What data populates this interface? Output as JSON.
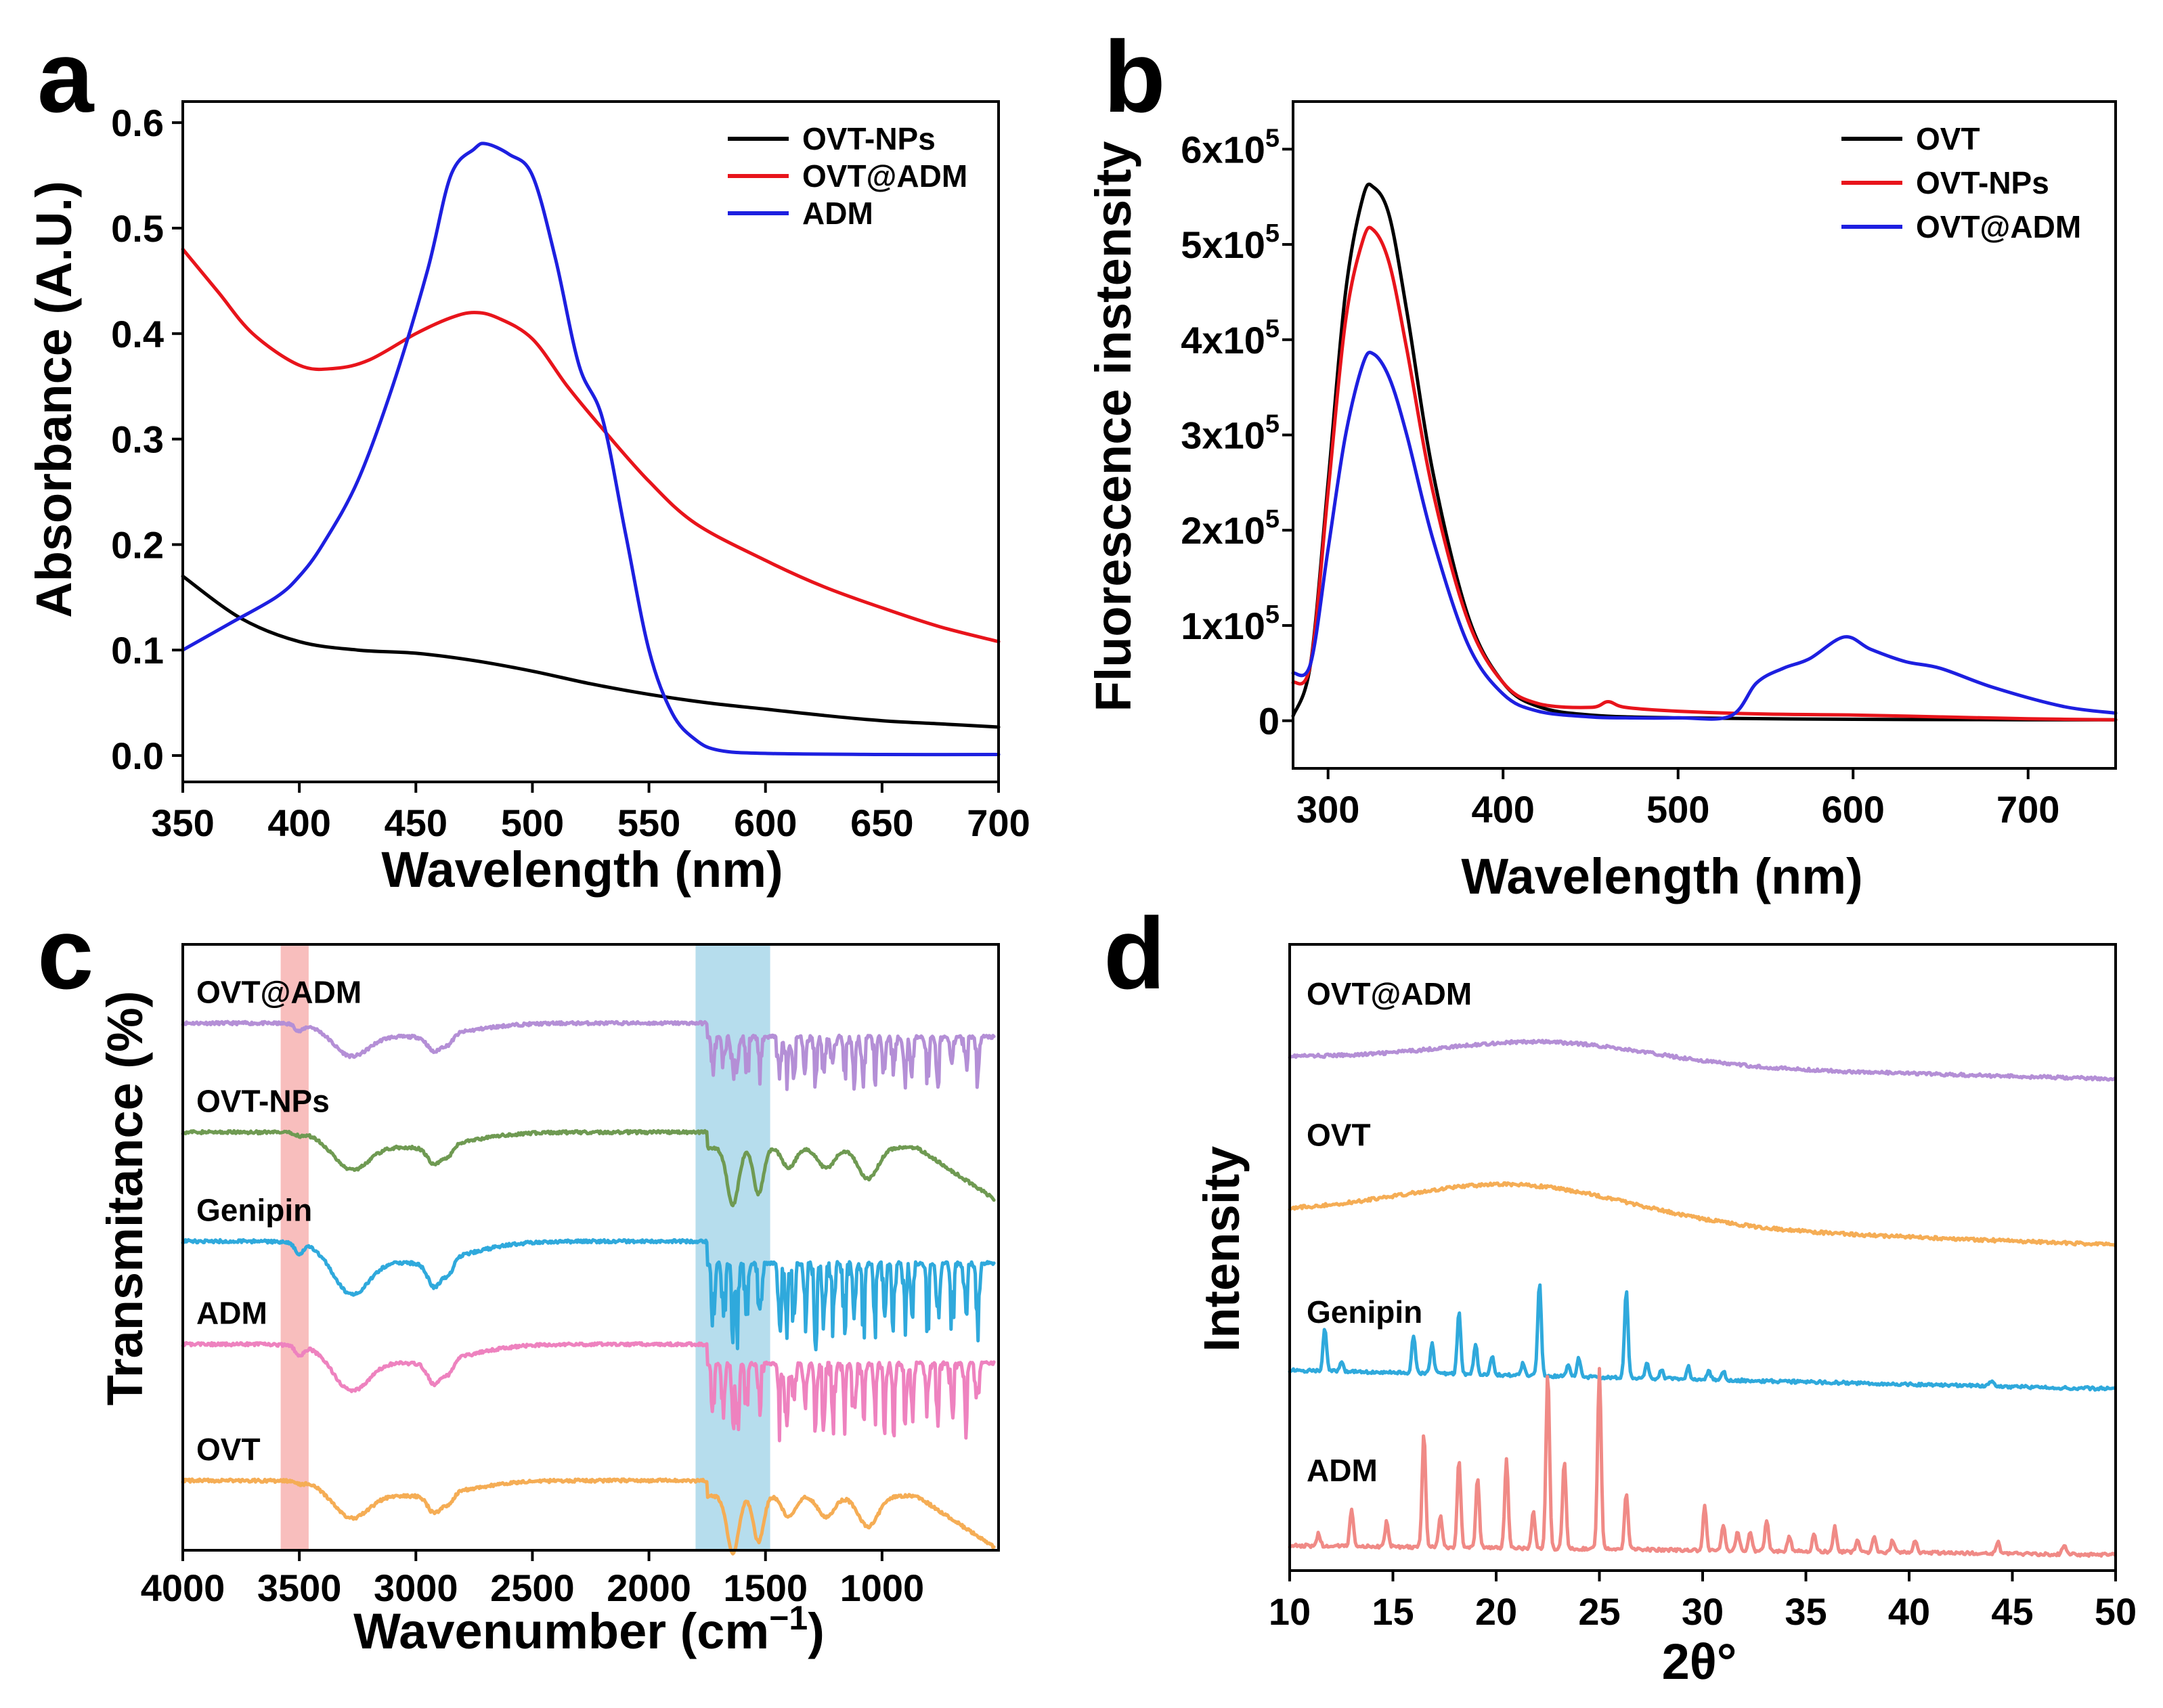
{
  "colors": {
    "black": "#000000",
    "red": "#e8141b",
    "blue": "#1d1fe0",
    "purple": "#b48fd6",
    "green": "#6f9a52",
    "cyan": "#2fa9dc",
    "pink": "#ee82bf",
    "orange": "#f5ad55",
    "salmon": "#f08a86",
    "band_red": "#f7b3b1",
    "band_blue": "#a9d7ea"
  },
  "chart_data": [
    {
      "panel": "a",
      "type": "line",
      "xlabel": "Wavelength (nm)",
      "ylabel": "Absorbance (A.U.)",
      "xlim": [
        350,
        700
      ],
      "ylim": [
        -0.025,
        0.62
      ],
      "xticks": [
        350,
        400,
        450,
        500,
        550,
        600,
        650,
        700
      ],
      "yticks": [
        0.0,
        0.1,
        0.2,
        0.3,
        0.4,
        0.5,
        0.6
      ],
      "ytick_labels": [
        "0.0",
        "0.1",
        "0.2",
        "0.3",
        "0.4",
        "0.5",
        "0.6"
      ],
      "legend_position": "top-right",
      "series": [
        {
          "name": "OVT-NPs",
          "color": "#000000",
          "x": [
            350,
            375,
            400,
            425,
            450,
            475,
            500,
            525,
            550,
            575,
            600,
            625,
            650,
            675,
            700
          ],
          "y": [
            0.17,
            0.13,
            0.108,
            0.1,
            0.097,
            0.09,
            0.08,
            0.068,
            0.058,
            0.05,
            0.044,
            0.038,
            0.033,
            0.03,
            0.027
          ]
        },
        {
          "name": "OVT@ADM",
          "color": "#e8141b",
          "x": [
            350,
            365,
            380,
            400,
            415,
            430,
            450,
            465,
            475,
            485,
            500,
            515,
            530,
            550,
            570,
            600,
            625,
            650,
            675,
            700
          ],
          "y": [
            0.48,
            0.44,
            0.4,
            0.37,
            0.367,
            0.375,
            0.4,
            0.415,
            0.42,
            0.415,
            0.395,
            0.35,
            0.31,
            0.26,
            0.22,
            0.185,
            0.16,
            0.14,
            0.122,
            0.108
          ]
        },
        {
          "name": "ADM",
          "color": "#1d1fe0",
          "x": [
            350,
            370,
            390,
            400,
            410,
            425,
            440,
            455,
            465,
            475,
            480,
            490,
            500,
            510,
            520,
            530,
            540,
            550,
            560,
            570,
            580,
            600,
            650,
            700
          ],
          "y": [
            0.1,
            0.125,
            0.15,
            0.17,
            0.2,
            0.26,
            0.35,
            0.46,
            0.55,
            0.575,
            0.58,
            0.57,
            0.55,
            0.47,
            0.37,
            0.32,
            0.21,
            0.1,
            0.04,
            0.015,
            0.005,
            0.002,
            0.001,
            0.001
          ]
        }
      ]
    },
    {
      "panel": "b",
      "type": "line",
      "xlabel": "Wavelength (nm)",
      "ylabel": "Fluorescence instensity",
      "xlim": [
        280,
        750
      ],
      "ylim": [
        -50000,
        650000
      ],
      "xticks": [
        300,
        400,
        500,
        600,
        700
      ],
      "yticks": [
        0,
        100000,
        200000,
        300000,
        400000,
        500000,
        600000
      ],
      "ytick_labels": [
        "0",
        "1x10",
        "2x10",
        "3x10",
        "4x10",
        "5x10",
        "6x10"
      ],
      "ytick_exponent": "5",
      "legend_position": "top-right",
      "series": [
        {
          "name": "OVT",
          "color": "#000000",
          "x": [
            280,
            290,
            300,
            310,
            320,
            326,
            335,
            345,
            360,
            380,
            400,
            420,
            450,
            500,
            600,
            700,
            750
          ],
          "y": [
            5000,
            60000,
            250000,
            450000,
            550000,
            560000,
            530000,
            430000,
            260000,
            110000,
            40000,
            15000,
            6000,
            3000,
            1500,
            1000,
            1000
          ]
        },
        {
          "name": "OVT-NPs",
          "color": "#e8141b",
          "x": [
            280,
            290,
            300,
            310,
            320,
            326,
            335,
            345,
            360,
            380,
            400,
            420,
            450,
            460,
            470,
            500,
            550,
            600,
            650,
            700,
            750
          ],
          "y": [
            40000,
            60000,
            240000,
            420000,
            505000,
            515000,
            480000,
            390000,
            240000,
            105000,
            40000,
            18000,
            14000,
            20000,
            14000,
            10000,
            7000,
            6000,
            4000,
            2000,
            1000
          ]
        },
        {
          "name": "OVT@ADM",
          "color": "#1d1fe0",
          "x": [
            280,
            290,
            300,
            310,
            320,
            326,
            335,
            345,
            360,
            380,
            400,
            420,
            450,
            470,
            500,
            530,
            545,
            560,
            575,
            595,
            610,
            630,
            650,
            680,
            720,
            750
          ],
          "y": [
            50000,
            60000,
            180000,
            300000,
            375000,
            385000,
            360000,
            300000,
            190000,
            80000,
            28000,
            10000,
            4000,
            3000,
            3000,
            5000,
            40000,
            55000,
            65000,
            88000,
            75000,
            62000,
            55000,
            35000,
            15000,
            8000
          ]
        }
      ]
    },
    {
      "panel": "c",
      "type": "line",
      "xlabel": "Wavenumber (cm",
      "xlabel_sup": "−1",
      "xlabel_end": ")",
      "ylabel": "Transmitance (%)",
      "xlim": [
        4000,
        500
      ],
      "ylim": [
        0,
        100
      ],
      "xticks": [
        4000,
        3500,
        3000,
        2500,
        2000,
        1500,
        1000
      ],
      "highlight_bands": [
        [
          3580,
          3460
        ],
        [
          1800,
          1480
        ]
      ],
      "series": [
        {
          "name": "OVT@ADM",
          "color": "#b48fd6",
          "baseline": 87,
          "depth": 0.75,
          "variant": "sharp"
        },
        {
          "name": "OVT-NPs",
          "color": "#6f9a52",
          "baseline": 69,
          "depth": 0.85,
          "variant": "broad"
        },
        {
          "name": "Genipin",
          "color": "#2fa9dc",
          "baseline": 51,
          "depth": 1.2,
          "variant": "sharp"
        },
        {
          "name": "ADM",
          "color": "#ee82bf",
          "baseline": 34,
          "depth": 1.05,
          "variant": "sharp"
        },
        {
          "name": "OVT",
          "color": "#f5ad55",
          "baseline": 11.5,
          "depth": 0.85,
          "variant": "broad"
        }
      ]
    },
    {
      "panel": "d",
      "type": "line",
      "xlabel": "2θ°",
      "ylabel": "Intensity",
      "xlim": [
        10,
        50
      ],
      "ylim": [
        0,
        100
      ],
      "xticks": [
        10,
        15,
        20,
        25,
        30,
        35,
        40,
        45,
        50
      ],
      "series": [
        {
          "name": "OVT@ADM",
          "color": "#b48fd6",
          "baseline": 82,
          "hump": [
            22.5,
            4.5,
            3.5
          ],
          "slope": -3.5
        },
        {
          "name": "OVT",
          "color": "#f5ad55",
          "baseline": 57,
          "hump": [
            21,
            5,
            6
          ],
          "slope": -5
        },
        {
          "name": "Genipin",
          "color": "#2fa9dc",
          "baseline": 32,
          "slope": -3,
          "peaks": [
            [
              11.7,
              7
            ],
            [
              12.5,
              1.5
            ],
            [
              16.0,
              6
            ],
            [
              16.9,
              5
            ],
            [
              18.2,
              10
            ],
            [
              19.0,
              5
            ],
            [
              19.8,
              3
            ],
            [
              21.3,
              2
            ],
            [
              22.1,
              15
            ],
            [
              23.5,
              2
            ],
            [
              24.0,
              3
            ],
            [
              26.3,
              14
            ],
            [
              27.3,
              2.5
            ],
            [
              28.0,
              1.5
            ],
            [
              29.3,
              2
            ],
            [
              30.3,
              1.5
            ],
            [
              31.0,
              1.5
            ],
            [
              44.0,
              1
            ]
          ]
        },
        {
          "name": "ADM",
          "color": "#f08a86",
          "baseline": 4,
          "slope": -1.5,
          "peaks": [
            [
              11.4,
              2
            ],
            [
              13.0,
              6
            ],
            [
              14.7,
              4
            ],
            [
              16.5,
              18
            ],
            [
              17.3,
              5
            ],
            [
              18.2,
              14
            ],
            [
              19.1,
              11
            ],
            [
              20.5,
              14
            ],
            [
              21.8,
              6
            ],
            [
              22.5,
              28
            ],
            [
              23.3,
              14
            ],
            [
              25.0,
              29
            ],
            [
              26.3,
              9
            ],
            [
              30.1,
              7
            ],
            [
              31.0,
              4
            ],
            [
              31.7,
              3
            ],
            [
              32.3,
              3
            ],
            [
              33.1,
              5
            ],
            [
              34.2,
              2.5
            ],
            [
              35.4,
              3
            ],
            [
              36.4,
              4
            ],
            [
              37.5,
              2
            ],
            [
              38.3,
              2.5
            ],
            [
              39.2,
              2
            ],
            [
              40.3,
              2
            ],
            [
              44.3,
              2
            ],
            [
              47.5,
              1.5
            ]
          ]
        }
      ]
    }
  ],
  "panel_labels": {
    "a": "a",
    "b": "b",
    "c": "c",
    "d": "d"
  }
}
